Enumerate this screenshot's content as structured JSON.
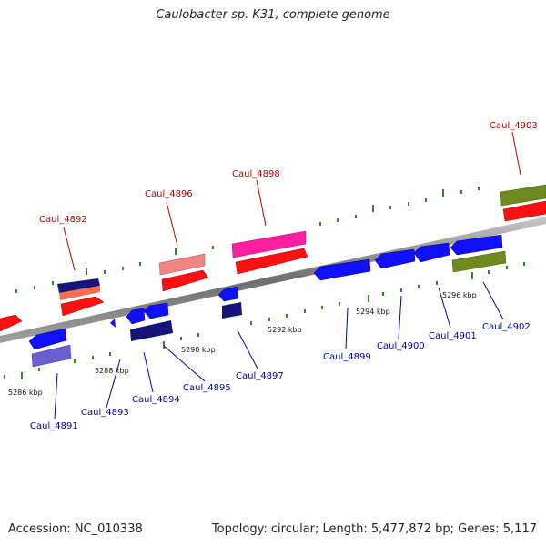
{
  "title": "Caulobacter sp. K31, complete genome",
  "footer": {
    "accession": "Accession: NC_010338",
    "topology": "Topology: circular; Length: 5,477,872 bp; Genes: 5,117"
  },
  "colors": {
    "forward_label": "#c00000",
    "reverse_label": "#0000b0",
    "tick": "#2a8a2a",
    "backbone": "#888888"
  },
  "kbp_labels": [
    "5286 kbp",
    "5288 kbp",
    "5290 kbp",
    "5292 kbp",
    "5294 kbp",
    "5296 kbp"
  ],
  "gene_labels": {
    "forward": [
      "Caul_4892",
      "Caul_4896",
      "Caul_4898",
      "Caul_4903"
    ],
    "reverse": [
      "Caul_4891",
      "Caul_4893",
      "Caul_4894",
      "Caul_4895",
      "Caul_4897",
      "Caul_4899",
      "Caul_4900",
      "Caul_4901",
      "Caul_4902"
    ]
  }
}
